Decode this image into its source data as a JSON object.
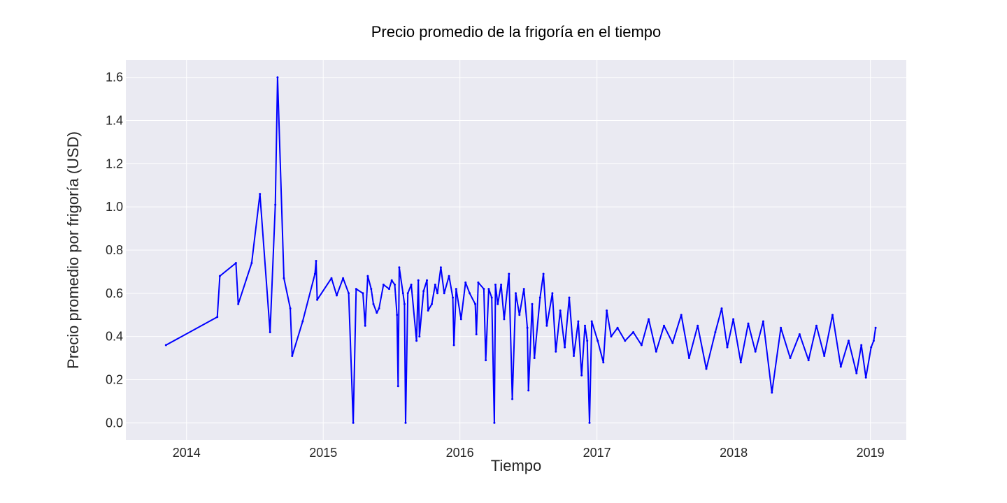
{
  "chart_data": {
    "type": "line",
    "title": "Precio promedio de la frigoría en el tiempo",
    "xlabel": "Tiempo",
    "ylabel": "Precio promedio por frigoría (USD)",
    "x_axis_type": "date",
    "xlim": [
      "2013-07-23",
      "2019-04-07"
    ],
    "ylim": [
      -0.08,
      1.68
    ],
    "x_ticks": [
      {
        "date": "2014-01-01",
        "label": "2014"
      },
      {
        "date": "2015-01-01",
        "label": "2015"
      },
      {
        "date": "2016-01-01",
        "label": "2016"
      },
      {
        "date": "2017-01-01",
        "label": "2017"
      },
      {
        "date": "2018-01-01",
        "label": "2018"
      },
      {
        "date": "2019-01-01",
        "label": "2019"
      }
    ],
    "y_ticks": [
      {
        "value": 0.0,
        "label": "0.0"
      },
      {
        "value": 0.2,
        "label": "0.2"
      },
      {
        "value": 0.4,
        "label": "0.4"
      },
      {
        "value": 0.6,
        "label": "0.6"
      },
      {
        "value": 0.8,
        "label": "0.8"
      },
      {
        "value": 1.0,
        "label": "1.0"
      },
      {
        "value": 1.2,
        "label": "1.2"
      },
      {
        "value": 1.4,
        "label": "1.4"
      },
      {
        "value": 1.6,
        "label": "1.6"
      }
    ],
    "grid": true,
    "background_color": "#eaeaf2",
    "series": [
      {
        "color": "#0000ff",
        "points": [
          [
            "2013-11-07",
            0.36
          ],
          [
            "2014-03-24",
            0.49
          ],
          [
            "2014-03-31",
            0.68
          ],
          [
            "2014-05-13",
            0.74
          ],
          [
            "2014-05-19",
            0.55
          ],
          [
            "2014-06-24",
            0.74
          ],
          [
            "2014-07-16",
            1.06
          ],
          [
            "2014-08-12",
            0.42
          ],
          [
            "2014-08-26",
            1.01
          ],
          [
            "2014-09-01",
            1.6
          ],
          [
            "2014-09-18",
            0.67
          ],
          [
            "2014-10-05",
            0.53
          ],
          [
            "2014-10-10",
            0.31
          ],
          [
            "2014-11-07",
            0.47
          ],
          [
            "2014-12-10",
            0.69
          ],
          [
            "2014-12-13",
            0.75
          ],
          [
            "2014-12-16",
            0.57
          ],
          [
            "2015-01-23",
            0.67
          ],
          [
            "2015-02-06",
            0.59
          ],
          [
            "2015-02-23",
            0.67
          ],
          [
            "2015-03-10",
            0.6
          ],
          [
            "2015-03-22",
            0.0
          ],
          [
            "2015-03-30",
            0.62
          ],
          [
            "2015-04-17",
            0.6
          ],
          [
            "2015-04-23",
            0.45
          ],
          [
            "2015-04-30",
            0.68
          ],
          [
            "2015-05-09",
            0.62
          ],
          [
            "2015-05-15",
            0.55
          ],
          [
            "2015-05-24",
            0.51
          ],
          [
            "2015-05-30",
            0.53
          ],
          [
            "2015-06-11",
            0.64
          ],
          [
            "2015-06-26",
            0.62
          ],
          [
            "2015-07-03",
            0.66
          ],
          [
            "2015-07-11",
            0.64
          ],
          [
            "2015-07-17",
            0.5
          ],
          [
            "2015-07-20",
            0.17
          ],
          [
            "2015-07-23",
            0.72
          ],
          [
            "2015-08-02",
            0.6
          ],
          [
            "2015-08-06",
            0.55
          ],
          [
            "2015-08-09",
            0.0
          ],
          [
            "2015-08-15",
            0.6
          ],
          [
            "2015-08-24",
            0.64
          ],
          [
            "2015-09-07",
            0.38
          ],
          [
            "2015-09-12",
            0.66
          ],
          [
            "2015-09-15",
            0.4
          ],
          [
            "2015-09-26",
            0.61
          ],
          [
            "2015-10-05",
            0.66
          ],
          [
            "2015-10-08",
            0.52
          ],
          [
            "2015-10-18",
            0.55
          ],
          [
            "2015-10-27",
            0.64
          ],
          [
            "2015-11-02",
            0.6
          ],
          [
            "2015-11-11",
            0.72
          ],
          [
            "2015-11-20",
            0.6
          ],
          [
            "2015-12-03",
            0.68
          ],
          [
            "2015-12-13",
            0.58
          ],
          [
            "2015-12-16",
            0.36
          ],
          [
            "2015-12-22",
            0.62
          ],
          [
            "2016-01-04",
            0.48
          ],
          [
            "2016-01-16",
            0.65
          ],
          [
            "2016-01-27",
            0.6
          ],
          [
            "2016-02-11",
            0.55
          ],
          [
            "2016-02-14",
            0.41
          ],
          [
            "2016-02-19",
            0.65
          ],
          [
            "2016-03-05",
            0.62
          ],
          [
            "2016-03-10",
            0.29
          ],
          [
            "2016-03-18",
            0.62
          ],
          [
            "2016-03-26",
            0.58
          ],
          [
            "2016-04-02",
            0.0
          ],
          [
            "2016-04-05",
            0.64
          ],
          [
            "2016-04-11",
            0.55
          ],
          [
            "2016-04-20",
            0.64
          ],
          [
            "2016-04-28",
            0.48
          ],
          [
            "2016-05-11",
            0.69
          ],
          [
            "2016-05-20",
            0.11
          ],
          [
            "2016-05-29",
            0.6
          ],
          [
            "2016-06-08",
            0.5
          ],
          [
            "2016-06-20",
            0.62
          ],
          [
            "2016-06-29",
            0.44
          ],
          [
            "2016-07-02",
            0.15
          ],
          [
            "2016-07-12",
            0.55
          ],
          [
            "2016-07-18",
            0.3
          ],
          [
            "2016-08-02",
            0.58
          ],
          [
            "2016-08-11",
            0.69
          ],
          [
            "2016-08-20",
            0.45
          ],
          [
            "2016-09-04",
            0.6
          ],
          [
            "2016-09-13",
            0.33
          ],
          [
            "2016-09-25",
            0.52
          ],
          [
            "2016-10-07",
            0.35
          ],
          [
            "2016-10-19",
            0.58
          ],
          [
            "2016-10-31",
            0.31
          ],
          [
            "2016-11-12",
            0.47
          ],
          [
            "2016-11-21",
            0.22
          ],
          [
            "2016-11-30",
            0.45
          ],
          [
            "2016-12-06",
            0.38
          ],
          [
            "2016-12-12",
            0.0
          ],
          [
            "2016-12-18",
            0.47
          ],
          [
            "2017-01-03",
            0.38
          ],
          [
            "2017-01-18",
            0.28
          ],
          [
            "2017-01-27",
            0.52
          ],
          [
            "2017-02-08",
            0.4
          ],
          [
            "2017-02-25",
            0.44
          ],
          [
            "2017-03-17",
            0.38
          ],
          [
            "2017-04-08",
            0.42
          ],
          [
            "2017-04-30",
            0.36
          ],
          [
            "2017-05-19",
            0.48
          ],
          [
            "2017-06-08",
            0.33
          ],
          [
            "2017-06-29",
            0.45
          ],
          [
            "2017-07-22",
            0.37
          ],
          [
            "2017-08-14",
            0.5
          ],
          [
            "2017-09-04",
            0.3
          ],
          [
            "2017-09-27",
            0.45
          ],
          [
            "2017-10-20",
            0.25
          ],
          [
            "2017-11-13",
            0.42
          ],
          [
            "2017-11-30",
            0.53
          ],
          [
            "2017-12-15",
            0.35
          ],
          [
            "2017-12-31",
            0.48
          ],
          [
            "2018-01-20",
            0.28
          ],
          [
            "2018-02-09",
            0.46
          ],
          [
            "2018-02-28",
            0.33
          ],
          [
            "2018-03-21",
            0.47
          ],
          [
            "2018-04-13",
            0.14
          ],
          [
            "2018-05-07",
            0.44
          ],
          [
            "2018-06-01",
            0.3
          ],
          [
            "2018-06-26",
            0.41
          ],
          [
            "2018-07-20",
            0.29
          ],
          [
            "2018-08-10",
            0.45
          ],
          [
            "2018-08-31",
            0.31
          ],
          [
            "2018-09-22",
            0.5
          ],
          [
            "2018-10-14",
            0.26
          ],
          [
            "2018-11-04",
            0.38
          ],
          [
            "2018-11-25",
            0.23
          ],
          [
            "2018-12-08",
            0.36
          ],
          [
            "2018-12-20",
            0.21
          ],
          [
            "2019-01-03",
            0.35
          ],
          [
            "2019-01-10",
            0.38
          ],
          [
            "2019-01-15",
            0.44
          ]
        ]
      }
    ]
  }
}
